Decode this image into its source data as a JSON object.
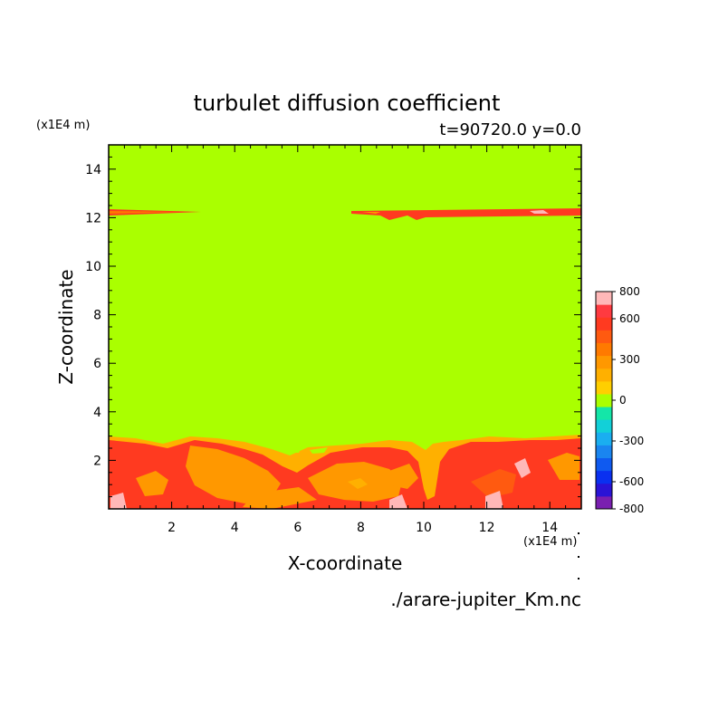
{
  "chart_data": {
    "type": "heatmap",
    "title": "turbulet diffusion coefficient",
    "subtitle": "t=90720.0 y=0.0",
    "xlabel": "X-coordinate",
    "ylabel": "Z-coordinate",
    "x_units": "(x1E4 m)",
    "y_units": "(x1E4 m)",
    "xlim": [
      0,
      15
    ],
    "ylim": [
      0,
      15
    ],
    "x_ticks": [
      2,
      4,
      6,
      8,
      10,
      12,
      14
    ],
    "y_ticks": [
      2,
      4,
      6,
      8,
      10,
      12,
      14
    ],
    "source_file": "./arare-jupiter_Km.nc",
    "colorbar": {
      "levels": [
        -800,
        -700,
        -600,
        -500,
        -400,
        -300,
        -200,
        -100,
        0,
        100,
        200,
        300,
        400,
        500,
        600,
        700,
        800
      ],
      "labeled_levels": [
        "800",
        "600",
        "300",
        "0",
        "-300",
        "-600",
        "-800"
      ],
      "colors": [
        "#7a1fb0",
        "#2a13d6",
        "#0a30f0",
        "#0f5af0",
        "#1a85f0",
        "#1aaef0",
        "#12d0d8",
        "#14e6a8",
        "#aaff00",
        "#ffcf00",
        "#ffb000",
        "#ff9800",
        "#ff7a00",
        "#ff5a10",
        "#ff3a20",
        "#ff3a40",
        "#ffb8b8"
      ]
    },
    "background_value_color": "#aaff00",
    "regions": [
      {
        "description": "thin layer of high values near z=12.2 at left (x 0-3) and right (x 7.5-15)",
        "value_range": [
          300,
          700
        ]
      },
      {
        "description": "turbulent boundary layer below z~3 with values 300-800",
        "value_range": [
          300,
          800
        ]
      }
    ]
  }
}
